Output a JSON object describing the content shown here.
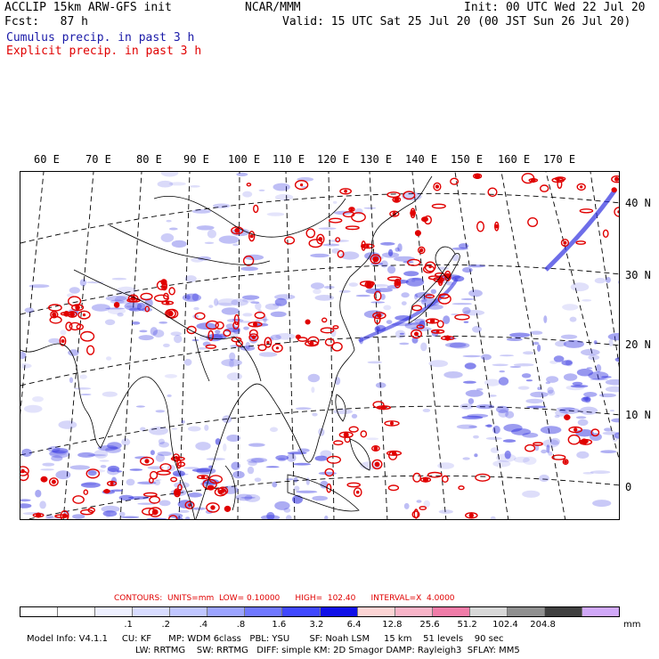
{
  "header": {
    "line1_left": "ACCLIP 15km ARW-GFS init",
    "line1_center": "NCAR/MMM",
    "line1_right": "Init: 00 UTC Wed 22 Jul 20",
    "line2_left": "Fcst:   87 h",
    "line2_right": "Valid: 15 UTC Sat 25 Jul 20 (00 JST Sun 26 Jul 20)",
    "legend_cumulus": "Cumulus precip. in past 3 h",
    "legend_explicit": "Explicit precip. in past 3 h"
  },
  "map": {
    "lon_labels": [
      "60 E",
      "70 E",
      "80 E",
      "90 E",
      "100 E",
      "110 E",
      "120 E",
      "130 E",
      "140 E",
      "150 E",
      "160 E",
      "170 E"
    ],
    "lat_labels": [
      "40 N",
      "30 N",
      "20 N",
      "10 N",
      "0"
    ],
    "colors": {
      "cumulus": "#3030e0",
      "explicit": "#e00000",
      "coast": "#000000",
      "grid": "#000000"
    }
  },
  "contours": {
    "text": "CONTOURS:  UNITS=mm  LOW= 0.10000      HIGH=  102.40      INTERVAL=X  4.0000"
  },
  "colorbar": {
    "colors": [
      "#ffffff",
      "#ffffff",
      "#eef0ff",
      "#d8dcff",
      "#c0c6ff",
      "#9ca4ff",
      "#7078ff",
      "#4048ff",
      "#1010e8",
      "#fcd4d4",
      "#f8b4c8",
      "#f07ca8",
      "#d8d8d8",
      "#909090",
      "#404040",
      "#d0a8f8"
    ],
    "labels": [
      ".1",
      ".2",
      ".4",
      ".8",
      "1.6",
      "3.2",
      "6.4",
      "12.8",
      "25.6",
      "51.2",
      "102.4",
      "204.8"
    ],
    "unit": "mm"
  },
  "footer": {
    "line1": "Model Info: V4.1.1     CU: KF      MP: WDM 6class   PBL: YSU       SF: Noah LSM     15 km    51 levels    90 sec",
    "line2": "LW: RRTMG    SW: RRTMG   DIFF: simple KM: 2D Smagor DAMP: Rayleigh3  SFLAY: MM5"
  }
}
